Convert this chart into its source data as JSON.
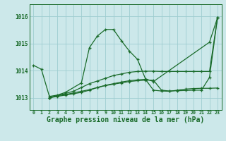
{
  "background_color": "#cce8ea",
  "grid_color": "#9ecdd0",
  "line_color": "#1a6b2a",
  "xlabel": "Graphe pression niveau de la mer (hPa)",
  "xlabel_fontsize": 7.0,
  "ylabel_ticks": [
    1013,
    1014,
    1015,
    1016
  ],
  "xlim": [
    -0.5,
    23.5
  ],
  "ylim": [
    1012.55,
    1016.45
  ],
  "s1x": [
    0,
    1,
    2,
    3,
    4,
    6,
    7,
    8,
    9,
    10,
    11,
    12,
    13,
    14,
    15,
    22,
    23
  ],
  "s1y": [
    1014.2,
    1014.05,
    1013.05,
    1013.1,
    1013.2,
    1013.55,
    1014.85,
    1015.28,
    1015.52,
    1015.52,
    1015.1,
    1014.72,
    1014.42,
    1013.7,
    1013.6,
    1015.05,
    1015.95
  ],
  "s2x": [
    2,
    3,
    4,
    5,
    6,
    7,
    8,
    9,
    10,
    11,
    12,
    13,
    14,
    15,
    16,
    17,
    18,
    19,
    20,
    21,
    22,
    23
  ],
  "s2y": [
    1013.0,
    1013.05,
    1013.1,
    1013.15,
    1013.2,
    1013.28,
    1013.38,
    1013.46,
    1013.52,
    1013.58,
    1013.63,
    1013.66,
    1013.68,
    1013.28,
    1013.25,
    1013.24,
    1013.28,
    1013.32,
    1013.34,
    1013.35,
    1013.35,
    1013.36
  ],
  "s3x": [
    2,
    3,
    4,
    5,
    6,
    7,
    8,
    9,
    10,
    11,
    12,
    13,
    14,
    15,
    16,
    17,
    18,
    19,
    20,
    21,
    22,
    23
  ],
  "s3y": [
    1013.0,
    1013.08,
    1013.16,
    1013.24,
    1013.38,
    1013.52,
    1013.62,
    1013.72,
    1013.82,
    1013.88,
    1013.94,
    1013.97,
    1013.98,
    1013.98,
    1013.97,
    1013.97,
    1013.97,
    1013.97,
    1013.97,
    1013.97,
    1013.97,
    1015.95
  ],
  "s4x": [
    2,
    3,
    4,
    5,
    6,
    7,
    8,
    9,
    10,
    11,
    12,
    13,
    14,
    15,
    16,
    17,
    18,
    19,
    20,
    21,
    22,
    23
  ],
  "s4y": [
    1013.0,
    1013.08,
    1013.12,
    1013.18,
    1013.24,
    1013.3,
    1013.38,
    1013.45,
    1013.5,
    1013.55,
    1013.6,
    1013.63,
    1013.65,
    1013.65,
    1013.28,
    1013.25,
    1013.26,
    1013.27,
    1013.28,
    1013.28,
    1013.75,
    1015.95
  ]
}
